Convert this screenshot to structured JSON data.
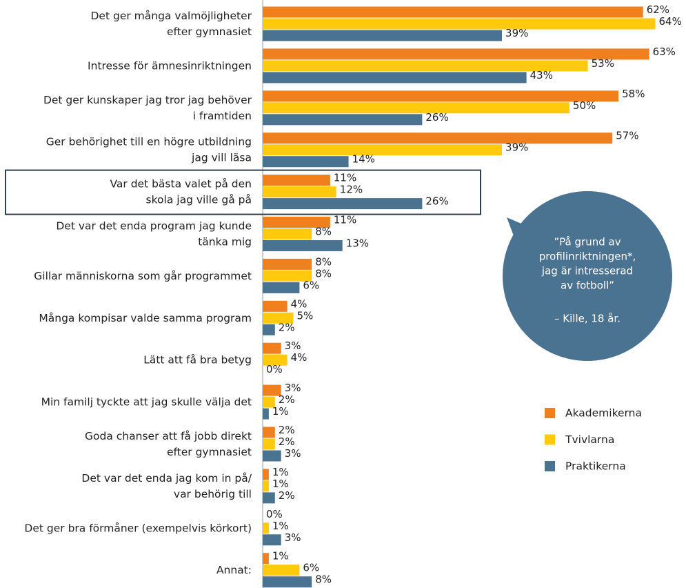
{
  "chart_data": {
    "type": "bar",
    "orientation": "horizontal",
    "categories": [
      [
        "Det ger många valmöjligheter",
        "efter gymnasiet"
      ],
      [
        "Intresse för ämnesinriktningen"
      ],
      [
        "Det ger kunskaper jag tror jag behöver",
        "i framtiden"
      ],
      [
        "Ger behörighet till en högre utbildning",
        "jag vill läsa"
      ],
      [
        "Var det bästa valet på den",
        "skola jag ville gå på"
      ],
      [
        "Det var det enda program jag kunde",
        "tänka mig"
      ],
      [
        "Gillar människorna som går programmet"
      ],
      [
        "Många kompisar valde samma program"
      ],
      [
        "Lätt att få bra betyg"
      ],
      [
        "Min familj tyckte att jag skulle välja det"
      ],
      [
        "Goda chanser att få jobb direkt",
        "efter gymnasiet"
      ],
      [
        "Det var det enda jag kom in på/",
        "var behörig till"
      ],
      [
        "Det ger bra förmåner (exempelvis körkort)"
      ],
      [
        "Annat:"
      ]
    ],
    "series": [
      {
        "name": "Akademikerna",
        "color": "#f07f1e",
        "values": [
          62,
          63,
          58,
          57,
          11,
          11,
          8,
          4,
          3,
          3,
          2,
          1,
          0,
          1
        ],
        "value_labels": [
          "62%",
          "63%",
          "58%",
          "57%",
          "11%",
          "11%",
          "8%",
          "4%",
          "3%",
          "3%",
          "2%",
          "1%",
          "0%",
          "1%"
        ]
      },
      {
        "name": "Tvivlarna",
        "color": "#ffc90e",
        "values": [
          64,
          53,
          50,
          39,
          12,
          8,
          8,
          5,
          4,
          2,
          2,
          1,
          1,
          6
        ],
        "value_labels": [
          "64%",
          "53%",
          "50%",
          "39%",
          "12%",
          "8%",
          "8%",
          "5%",
          "4%",
          "2%",
          "2%",
          "1%",
          "1%",
          "6%"
        ]
      },
      {
        "name": "Praktikerna",
        "color": "#4a7291",
        "values": [
          39,
          43,
          26,
          14,
          26,
          13,
          6,
          2,
          0,
          1,
          3,
          2,
          3,
          8
        ],
        "value_labels": [
          "39%",
          "43%",
          "26%",
          "14%",
          "26%",
          "13%",
          "6%",
          "2%",
          "0%",
          "1%",
          "3%",
          "2%",
          "3%",
          "8%"
        ]
      }
    ],
    "xlim": [
      0,
      69
    ],
    "highlight_category": 4,
    "annotation": {
      "lines": [
        "”På grund av",
        "profilinriktningen*,",
        "jag är intresserad",
        "av fotboll”"
      ],
      "attribution": "– Kille, 18 år.",
      "color": "#4a7291"
    }
  }
}
